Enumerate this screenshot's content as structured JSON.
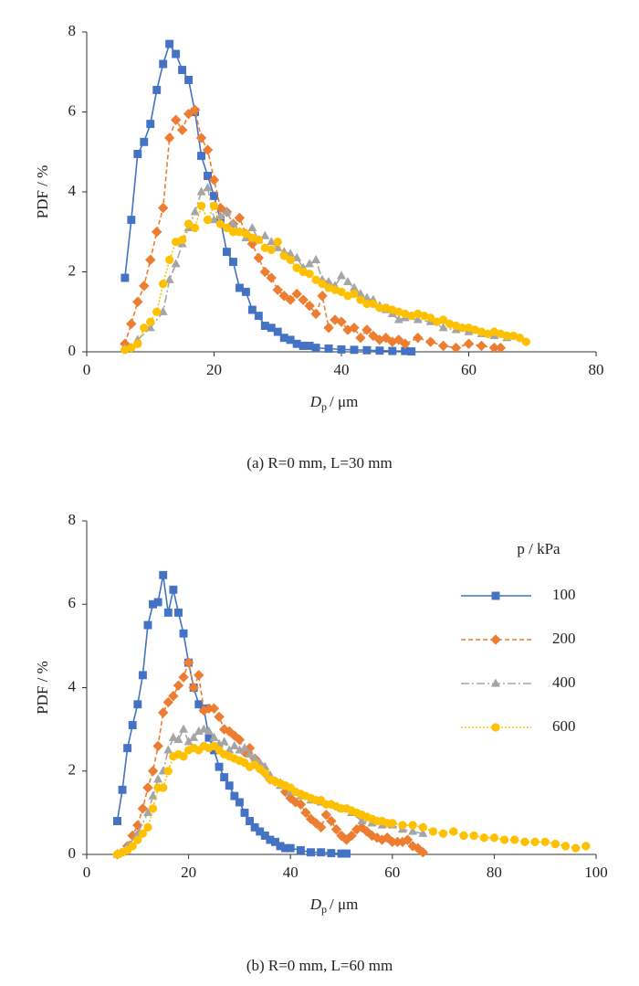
{
  "chart_data": [
    {
      "type": "line",
      "caption": "(a) R=0 mm, L=30 mm",
      "ylabel": "PDF / %",
      "xlabel": [
        "D",
        "p",
        "/ μm"
      ],
      "xlim": [
        0,
        80
      ],
      "ylim": [
        0,
        8
      ],
      "xticks": [
        0,
        20,
        40,
        60,
        80
      ],
      "yticks": [
        0,
        2,
        4,
        6,
        8
      ],
      "legend": false,
      "series": [
        {
          "color": "#4472c4",
          "marker": "square",
          "linestyle": "solid",
          "x": [
            6,
            7,
            8,
            9,
            10,
            11,
            12,
            13,
            14,
            15,
            16,
            17,
            18,
            19,
            20,
            21,
            22,
            23,
            24,
            25,
            26,
            27,
            28,
            29,
            30,
            31,
            32,
            33,
            34,
            35,
            36,
            38,
            40,
            42,
            44,
            46,
            48,
            50,
            51
          ],
          "values": [
            1.85,
            3.3,
            4.95,
            5.25,
            5.7,
            6.55,
            7.2,
            7.7,
            7.45,
            7.05,
            6.8,
            6.0,
            4.9,
            4.4,
            3.9,
            3.3,
            2.5,
            2.25,
            1.6,
            1.5,
            1.05,
            0.9,
            0.65,
            0.6,
            0.5,
            0.35,
            0.3,
            0.2,
            0.15,
            0.15,
            0.1,
            0.08,
            0.06,
            0.05,
            0.04,
            0.03,
            0.02,
            0.02,
            0.01
          ]
        },
        {
          "color": "#ed7d31",
          "marker": "diamond",
          "linestyle": "dashed",
          "x": [
            6,
            7,
            8,
            9,
            10,
            11,
            12,
            13,
            14,
            15,
            16,
            17,
            18,
            19,
            20,
            21,
            22,
            23,
            24,
            25,
            26,
            27,
            28,
            29,
            30,
            31,
            32,
            33,
            34,
            35,
            36,
            37,
            38,
            39,
            40,
            41,
            42,
            43,
            44,
            45,
            46,
            47,
            48,
            49,
            50,
            52,
            54,
            56,
            58,
            60,
            62,
            64,
            65
          ],
          "values": [
            0.2,
            0.7,
            1.25,
            1.65,
            2.3,
            3.0,
            3.6,
            5.35,
            5.8,
            5.55,
            5.95,
            6.05,
            5.35,
            5.05,
            4.3,
            3.6,
            3.5,
            3.2,
            3.35,
            2.95,
            2.7,
            2.35,
            2.0,
            1.85,
            1.55,
            1.4,
            1.3,
            1.45,
            1.3,
            1.15,
            0.95,
            1.4,
            0.6,
            0.8,
            0.75,
            0.55,
            0.6,
            0.35,
            0.55,
            0.4,
            0.3,
            0.35,
            0.25,
            0.3,
            0.2,
            0.35,
            0.25,
            0.15,
            0.1,
            0.2,
            0.15,
            0.1,
            0.1
          ]
        },
        {
          "color": "#a5a5a5",
          "marker": "triangle",
          "linestyle": "dashdot",
          "x": [
            6,
            8,
            10,
            12,
            13,
            14,
            15,
            16,
            17,
            18,
            19,
            20,
            21,
            22,
            23,
            24,
            25,
            26,
            27,
            28,
            29,
            30,
            31,
            32,
            33,
            34,
            35,
            36,
            37,
            38,
            39,
            40,
            41,
            42,
            43,
            44,
            45,
            46,
            47,
            48,
            49,
            50,
            52,
            54,
            56,
            58,
            60,
            62,
            64,
            66
          ],
          "values": [
            0.1,
            0.3,
            0.6,
            1.0,
            1.8,
            2.2,
            2.7,
            3.1,
            3.5,
            4.0,
            4.1,
            3.3,
            3.4,
            3.5,
            3.2,
            3.0,
            2.85,
            3.1,
            2.8,
            2.9,
            2.75,
            2.6,
            2.5,
            2.45,
            2.35,
            2.1,
            2.2,
            2.3,
            1.8,
            1.75,
            1.65,
            1.9,
            1.75,
            1.6,
            1.45,
            1.35,
            1.3,
            1.15,
            1.05,
            0.95,
            0.8,
            0.85,
            0.8,
            0.75,
            0.6,
            0.55,
            0.5,
            0.45,
            0.4,
            0.35
          ]
        },
        {
          "color": "#ffc000",
          "marker": "circle",
          "linestyle": "dotted",
          "x": [
            6,
            7,
            8,
            9,
            10,
            11,
            12,
            13,
            14,
            15,
            16,
            17,
            18,
            19,
            20,
            21,
            22,
            23,
            24,
            25,
            26,
            27,
            28,
            29,
            30,
            31,
            32,
            33,
            34,
            35,
            36,
            37,
            38,
            39,
            40,
            41,
            42,
            43,
            44,
            45,
            46,
            47,
            48,
            49,
            50,
            51,
            52,
            53,
            54,
            55,
            56,
            57,
            58,
            59,
            60,
            61,
            62,
            63,
            64,
            65,
            66,
            67,
            68,
            69
          ],
          "values": [
            0.05,
            0.1,
            0.2,
            0.6,
            0.75,
            1.0,
            1.7,
            2.3,
            2.75,
            2.8,
            3.2,
            3.1,
            3.65,
            3.3,
            3.65,
            3.2,
            3.1,
            3.0,
            3.0,
            2.95,
            2.85,
            2.8,
            2.6,
            2.55,
            2.75,
            2.4,
            2.3,
            2.1,
            2.0,
            1.95,
            1.8,
            1.7,
            1.6,
            1.55,
            1.5,
            1.4,
            1.45,
            1.3,
            1.2,
            1.2,
            1.1,
            1.1,
            1.05,
            1.0,
            0.95,
            0.9,
            0.95,
            0.9,
            0.85,
            0.75,
            0.8,
            0.7,
            0.65,
            0.6,
            0.6,
            0.55,
            0.5,
            0.45,
            0.5,
            0.45,
            0.4,
            0.4,
            0.35,
            0.25
          ]
        }
      ]
    },
    {
      "type": "line",
      "caption": "(b) R=0 mm, L=60 mm",
      "ylabel": "PDF / %",
      "xlabel": [
        "D",
        "p",
        "/ μm"
      ],
      "xlim": [
        0,
        100
      ],
      "ylim": [
        0,
        8
      ],
      "xticks": [
        0,
        20,
        40,
        60,
        80,
        100
      ],
      "yticks": [
        0,
        2,
        4,
        6,
        8
      ],
      "legend": "right",
      "legend_title": "p / kPa",
      "series": [
        {
          "name": "100",
          "color": "#4472c4",
          "marker": "square",
          "linestyle": "solid",
          "x": [
            6,
            7,
            8,
            9,
            10,
            11,
            12,
            13,
            14,
            15,
            16,
            17,
            18,
            19,
            20,
            21,
            22,
            23,
            24,
            25,
            26,
            27,
            28,
            29,
            30,
            31,
            32,
            33,
            34,
            35,
            36,
            37,
            38,
            39,
            40,
            42,
            44,
            46,
            48,
            50,
            51
          ],
          "values": [
            0.8,
            1.55,
            2.55,
            3.1,
            3.6,
            4.3,
            5.5,
            6.0,
            6.05,
            6.7,
            5.8,
            6.35,
            5.8,
            5.3,
            4.6,
            4.0,
            3.6,
            3.5,
            2.8,
            2.5,
            2.1,
            1.85,
            1.65,
            1.4,
            1.25,
            1.0,
            0.8,
            0.65,
            0.55,
            0.45,
            0.35,
            0.3,
            0.2,
            0.15,
            0.15,
            0.1,
            0.05,
            0.05,
            0.03,
            0.02,
            0.02
          ]
        },
        {
          "name": "200",
          "color": "#ed7d31",
          "marker": "diamond",
          "linestyle": "dashed",
          "x": [
            6,
            8,
            9,
            10,
            11,
            12,
            13,
            14,
            15,
            16,
            17,
            18,
            19,
            20,
            21,
            22,
            23,
            24,
            25,
            26,
            27,
            28,
            29,
            30,
            31,
            32,
            33,
            34,
            35,
            36,
            37,
            38,
            39,
            40,
            41,
            42,
            43,
            44,
            45,
            46,
            47,
            48,
            49,
            50,
            51,
            52,
            53,
            54,
            55,
            56,
            57,
            58,
            59,
            60,
            61,
            62,
            63,
            64,
            65,
            66
          ],
          "values": [
            0.0,
            0.2,
            0.45,
            0.7,
            1.1,
            1.6,
            2.0,
            2.6,
            3.4,
            3.65,
            3.8,
            4.05,
            4.25,
            4.6,
            4.0,
            4.3,
            3.45,
            3.5,
            3.5,
            3.3,
            3.0,
            2.95,
            2.85,
            2.75,
            2.45,
            2.55,
            2.3,
            2.15,
            1.95,
            1.8,
            1.75,
            1.7,
            1.5,
            1.35,
            1.25,
            1.2,
            1.0,
            0.85,
            0.75,
            0.65,
            0.95,
            0.8,
            0.6,
            0.45,
            0.35,
            0.45,
            0.6,
            0.65,
            0.55,
            0.45,
            0.4,
            0.35,
            0.4,
            0.3,
            0.3,
            0.3,
            0.35,
            0.2,
            0.15,
            0.05
          ]
        },
        {
          "name": "400",
          "color": "#a5a5a5",
          "marker": "triangle",
          "linestyle": "dashdot",
          "x": [
            6,
            8,
            10,
            12,
            13,
            14,
            15,
            16,
            17,
            18,
            19,
            20,
            21,
            22,
            23,
            24,
            25,
            26,
            27,
            28,
            29,
            30,
            31,
            32,
            33,
            34,
            35,
            36,
            38,
            40,
            42,
            44,
            46,
            48,
            50,
            52,
            54,
            56,
            58,
            60,
            62,
            64,
            66
          ],
          "values": [
            0.0,
            0.2,
            0.5,
            1.0,
            1.4,
            1.8,
            2.0,
            2.5,
            2.8,
            2.75,
            3.0,
            2.7,
            2.8,
            2.95,
            3.0,
            2.95,
            2.8,
            2.65,
            2.7,
            2.5,
            2.6,
            2.5,
            2.55,
            2.4,
            2.3,
            2.2,
            2.1,
            1.9,
            1.65,
            1.5,
            1.4,
            1.3,
            1.25,
            1.2,
            1.1,
            1.0,
            0.8,
            0.75,
            0.7,
            0.7,
            0.6,
            0.55,
            0.5
          ]
        },
        {
          "name": "600",
          "color": "#ffc000",
          "marker": "circle",
          "linestyle": "dotted",
          "x": [
            6,
            7,
            8,
            9,
            10,
            11,
            12,
            13,
            14,
            15,
            16,
            17,
            18,
            19,
            20,
            21,
            22,
            23,
            24,
            25,
            26,
            27,
            28,
            29,
            30,
            31,
            32,
            33,
            34,
            35,
            36,
            37,
            38,
            39,
            40,
            41,
            42,
            43,
            44,
            45,
            46,
            47,
            48,
            49,
            50,
            51,
            52,
            53,
            54,
            55,
            56,
            57,
            58,
            59,
            60,
            62,
            64,
            66,
            68,
            70,
            72,
            74,
            76,
            78,
            80,
            82,
            84,
            86,
            88,
            90,
            92,
            94,
            96,
            98
          ],
          "values": [
            0.0,
            0.05,
            0.1,
            0.2,
            0.35,
            0.5,
            0.65,
            1.1,
            1.6,
            1.6,
            2.0,
            2.35,
            2.4,
            2.35,
            2.5,
            2.55,
            2.5,
            2.6,
            2.55,
            2.6,
            2.5,
            2.4,
            2.35,
            2.3,
            2.25,
            2.2,
            2.1,
            2.15,
            2.05,
            1.95,
            1.8,
            1.75,
            1.7,
            1.65,
            1.6,
            1.5,
            1.45,
            1.4,
            1.35,
            1.3,
            1.3,
            1.2,
            1.2,
            1.15,
            1.1,
            1.1,
            1.05,
            1.0,
            0.95,
            0.9,
            0.85,
            0.8,
            0.8,
            0.75,
            0.75,
            0.7,
            0.7,
            0.65,
            0.55,
            0.5,
            0.55,
            0.45,
            0.45,
            0.4,
            0.4,
            0.35,
            0.35,
            0.3,
            0.3,
            0.3,
            0.25,
            0.2,
            0.15,
            0.2
          ]
        }
      ]
    }
  ]
}
